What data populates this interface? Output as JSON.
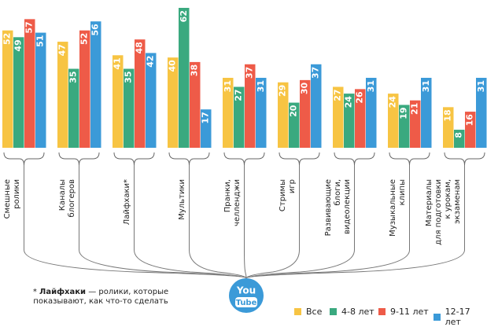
{
  "chart_data": {
    "type": "bar",
    "categories": [
      "Смешные\nролики",
      "Каналы\nблогеров",
      "Лайфхаки*",
      "Мультики",
      "Пранки,\nчелленджи",
      "Стримы\nигр",
      "Развивающие\nблоги,\nвидеолекции",
      "Музыкальные\nклипы",
      "Материалы\nдля подготовки\nк урокам,\nэкзаменам"
    ],
    "series": [
      {
        "name": "Все",
        "color": "#f7c443",
        "values": [
          52,
          47,
          41,
          40,
          31,
          29,
          27,
          24,
          18
        ]
      },
      {
        "name": "4-8 лет",
        "color": "#3aa97f",
        "values": [
          49,
          35,
          35,
          62,
          27,
          20,
          24,
          19,
          8
        ]
      },
      {
        "name": "9-11 лет",
        "color": "#ee5b48",
        "values": [
          57,
          52,
          48,
          38,
          37,
          30,
          26,
          21,
          16
        ]
      },
      {
        "name": "12-17 лет",
        "color": "#3b9ad8",
        "values": [
          51,
          56,
          42,
          17,
          31,
          37,
          31,
          31,
          31
        ]
      }
    ],
    "ylim": [
      0,
      62
    ],
    "logo": {
      "top": "You",
      "bottom": "Tube"
    },
    "footnote": {
      "marker": "*",
      "term": "Лайфхаки",
      "text": "— ролики, которые показывают, как что-то сделать"
    }
  }
}
